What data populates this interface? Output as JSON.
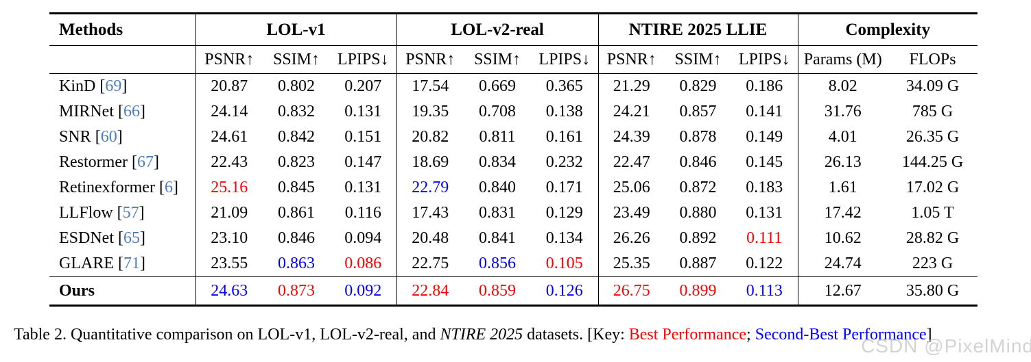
{
  "colors": {
    "text": "#000000",
    "best": "#ff0000",
    "second": "#0000ff",
    "citation": "#4a7cc0",
    "watermark": "#c9c9c9",
    "rule": "#000000"
  },
  "table": {
    "groups": [
      {
        "label": "Methods"
      },
      {
        "label": "LOL-v1",
        "sub": [
          "PSNR↑",
          "SSIM↑",
          "LPIPS↓"
        ]
      },
      {
        "label": "LOL-v2-real",
        "sub": [
          "PSNR↑",
          "SSIM↑",
          "LPIPS↓"
        ]
      },
      {
        "label": "NTIRE 2025 LLIE",
        "sub": [
          "PSNR↑",
          "SSIM↑",
          "LPIPS↓"
        ]
      },
      {
        "label": "Complexity",
        "sub": [
          "Params (M)",
          "FLOPs"
        ]
      }
    ],
    "color_legend": {
      "k": "text",
      "r": "best",
      "b": "second"
    },
    "rows": [
      {
        "method": "KinD",
        "cite": "69",
        "bold": false,
        "cells": [
          [
            "20.87",
            "k"
          ],
          [
            "0.802",
            "k"
          ],
          [
            "0.207",
            "k"
          ],
          [
            "17.54",
            "k"
          ],
          [
            "0.669",
            "k"
          ],
          [
            "0.365",
            "k"
          ],
          [
            "21.29",
            "k"
          ],
          [
            "0.829",
            "k"
          ],
          [
            "0.186",
            "k"
          ],
          [
            "8.02",
            "k"
          ],
          [
            "34.09 G",
            "k"
          ]
        ]
      },
      {
        "method": "MIRNet",
        "cite": "66",
        "bold": false,
        "cells": [
          [
            "24.14",
            "k"
          ],
          [
            "0.832",
            "k"
          ],
          [
            "0.131",
            "k"
          ],
          [
            "19.35",
            "k"
          ],
          [
            "0.708",
            "k"
          ],
          [
            "0.138",
            "k"
          ],
          [
            "24.21",
            "k"
          ],
          [
            "0.857",
            "k"
          ],
          [
            "0.141",
            "k"
          ],
          [
            "31.76",
            "k"
          ],
          [
            "785 G",
            "k"
          ]
        ]
      },
      {
        "method": "SNR",
        "cite": "60",
        "bold": false,
        "cells": [
          [
            "24.61",
            "k"
          ],
          [
            "0.842",
            "k"
          ],
          [
            "0.151",
            "k"
          ],
          [
            "20.82",
            "k"
          ],
          [
            "0.811",
            "k"
          ],
          [
            "0.161",
            "k"
          ],
          [
            "24.39",
            "k"
          ],
          [
            "0.878",
            "k"
          ],
          [
            "0.149",
            "k"
          ],
          [
            "4.01",
            "k"
          ],
          [
            "26.35 G",
            "k"
          ]
        ]
      },
      {
        "method": "Restormer",
        "cite": "67",
        "bold": false,
        "cells": [
          [
            "22.43",
            "k"
          ],
          [
            "0.823",
            "k"
          ],
          [
            "0.147",
            "k"
          ],
          [
            "18.69",
            "k"
          ],
          [
            "0.834",
            "k"
          ],
          [
            "0.232",
            "k"
          ],
          [
            "22.47",
            "k"
          ],
          [
            "0.846",
            "k"
          ],
          [
            "0.145",
            "k"
          ],
          [
            "26.13",
            "k"
          ],
          [
            "144.25 G",
            "k"
          ]
        ]
      },
      {
        "method": "Retinexformer",
        "cite": "6",
        "bold": false,
        "cells": [
          [
            "25.16",
            "r"
          ],
          [
            "0.845",
            "k"
          ],
          [
            "0.131",
            "k"
          ],
          [
            "22.79",
            "b"
          ],
          [
            "0.840",
            "k"
          ],
          [
            "0.171",
            "k"
          ],
          [
            "25.06",
            "k"
          ],
          [
            "0.872",
            "k"
          ],
          [
            "0.183",
            "k"
          ],
          [
            "1.61",
            "k"
          ],
          [
            "17.02 G",
            "k"
          ]
        ]
      },
      {
        "method": "LLFlow",
        "cite": "57",
        "bold": false,
        "cells": [
          [
            "21.09",
            "k"
          ],
          [
            "0.861",
            "k"
          ],
          [
            "0.116",
            "k"
          ],
          [
            "17.43",
            "k"
          ],
          [
            "0.831",
            "k"
          ],
          [
            "0.129",
            "k"
          ],
          [
            "23.49",
            "k"
          ],
          [
            "0.880",
            "k"
          ],
          [
            "0.131",
            "k"
          ],
          [
            "17.42",
            "k"
          ],
          [
            "1.05 T",
            "k"
          ]
        ]
      },
      {
        "method": "ESDNet",
        "cite": "65",
        "bold": false,
        "cells": [
          [
            "23.10",
            "k"
          ],
          [
            "0.846",
            "k"
          ],
          [
            "0.094",
            "k"
          ],
          [
            "20.48",
            "k"
          ],
          [
            "0.841",
            "k"
          ],
          [
            "0.134",
            "k"
          ],
          [
            "26.26",
            "k"
          ],
          [
            "0.892",
            "k"
          ],
          [
            "0.111",
            "r"
          ],
          [
            "10.62",
            "k"
          ],
          [
            "28.82 G",
            "k"
          ]
        ]
      },
      {
        "method": "GLARE",
        "cite": "71",
        "bold": false,
        "cells": [
          [
            "23.55",
            "k"
          ],
          [
            "0.863",
            "b"
          ],
          [
            "0.086",
            "r"
          ],
          [
            "22.75",
            "k"
          ],
          [
            "0.856",
            "b"
          ],
          [
            "0.105",
            "r"
          ],
          [
            "25.35",
            "k"
          ],
          [
            "0.887",
            "k"
          ],
          [
            "0.122",
            "k"
          ],
          [
            "24.74",
            "k"
          ],
          [
            "223 G",
            "k"
          ]
        ]
      },
      {
        "method": "Ours",
        "cite": "",
        "bold": true,
        "last": true,
        "cells": [
          [
            "24.63",
            "b"
          ],
          [
            "0.873",
            "r"
          ],
          [
            "0.092",
            "b"
          ],
          [
            "22.84",
            "r"
          ],
          [
            "0.859",
            "r"
          ],
          [
            "0.126",
            "b"
          ],
          [
            "26.75",
            "r"
          ],
          [
            "0.899",
            "r"
          ],
          [
            "0.113",
            "b"
          ],
          [
            "12.67",
            "k"
          ],
          [
            "35.80 G",
            "k"
          ]
        ]
      }
    ]
  },
  "caption": {
    "prefix": "Table 2.  Quantitative comparison on LOL-v1, LOL-v2-real, and ",
    "italic": "NTIRE 2025",
    "mid": " datasets. [Key: ",
    "best": "Best Performance",
    "sep": "; ",
    "second": "Second-Best Performance",
    "suffix": "]"
  },
  "watermark": "CSDN @PixelMind"
}
